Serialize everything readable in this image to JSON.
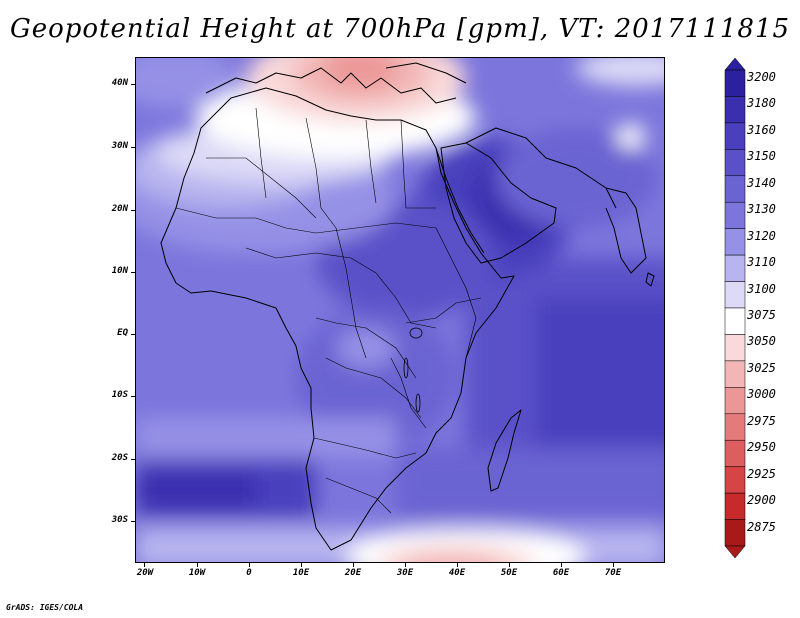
{
  "title": "Geopotential Height at 700hPa [gpm], VT: 2017111815",
  "credit": "GrADS: IGES/COLA",
  "lat_labels": [
    "40N",
    "30N",
    "20N",
    "10N",
    "EQ",
    "10S",
    "20S",
    "30S"
  ],
  "lon_labels": [
    "20W",
    "10W",
    "0",
    "10E",
    "20E",
    "30E",
    "40E",
    "50E",
    "60E",
    "70E"
  ],
  "colorbar": {
    "levels": [
      "3200",
      "3180",
      "3160",
      "3150",
      "3140",
      "3130",
      "3120",
      "3110",
      "3100",
      "3075",
      "3050",
      "3025",
      "3000",
      "2975",
      "2950",
      "2925",
      "2900",
      "2875"
    ],
    "colors": [
      "#2c1fa0",
      "#3a2fae",
      "#4a40bd",
      "#5a51c8",
      "#6a63d2",
      "#7c76dc",
      "#9591e6",
      "#b7b4ef",
      "#dcdaf6",
      "#ffffff",
      "#f9d9d9",
      "#f2b6b6",
      "#ec9797",
      "#e47a7a",
      "#dd5e5e",
      "#d64545",
      "#c62a2a",
      "#a81a1a"
    ]
  }
}
